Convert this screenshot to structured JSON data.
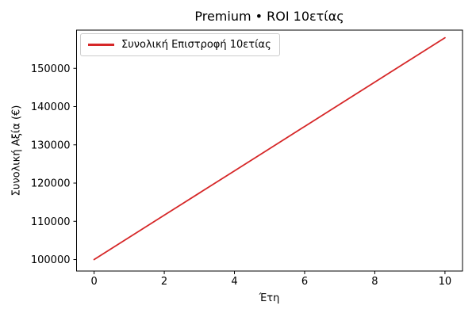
{
  "chart_data": {
    "type": "line",
    "title": "Premium • ROI 10ετίας",
    "xlabel": "Έτη",
    "ylabel": "Συνολική Αξία (€)",
    "x": [
      0,
      1,
      2,
      3,
      4,
      5,
      6,
      7,
      8,
      9,
      10
    ],
    "series": [
      {
        "name": "Συνολική Επιστροφή 10ετίας",
        "color": "#d62728",
        "values": [
          100000,
          105800,
          111600,
          117400,
          123200,
          129000,
          134800,
          140600,
          146400,
          152200,
          158000
        ]
      }
    ],
    "xlim": [
      -0.5,
      10.5
    ],
    "ylim": [
      97000,
      160000
    ],
    "xticks": [
      0,
      2,
      4,
      6,
      8,
      10
    ],
    "yticks": [
      100000,
      110000,
      120000,
      130000,
      140000,
      150000
    ],
    "grid": false,
    "legend_position": "upper left",
    "background_color": "#ffffff",
    "spine_color": "#000000",
    "text_color": "#000000"
  }
}
